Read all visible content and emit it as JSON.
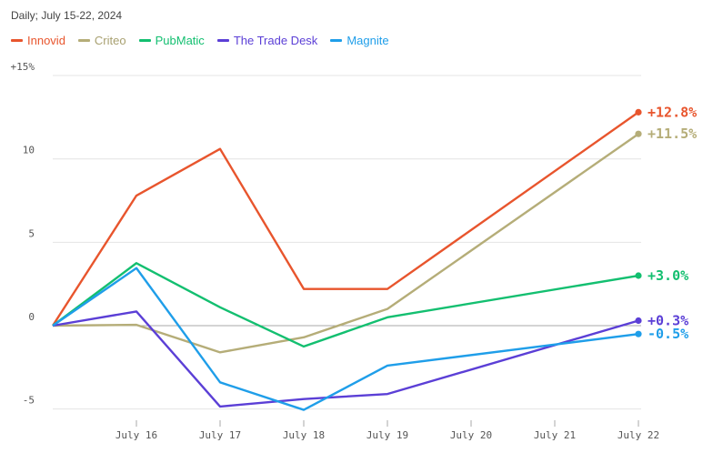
{
  "subtitle": "Daily; July 15-22, 2024",
  "chart_data": {
    "type": "line",
    "x": [
      "July 15",
      "July 16",
      "July 17",
      "July 18",
      "July 19",
      "July 20",
      "July 21",
      "July 22"
    ],
    "x_tick_labels": [
      "",
      "July 16",
      "July 17",
      "July 18",
      "July 19",
      "July 20",
      "July 21",
      "July 22"
    ],
    "y_ticks": [
      -5,
      0,
      5,
      10,
      15
    ],
    "y_tick_labels": [
      "-5",
      "0",
      "5",
      "10",
      "+15%"
    ],
    "ylim": [
      -5,
      15
    ],
    "grid": "horizontal",
    "legend_position": "top-left",
    "series": [
      {
        "name": "Innovid",
        "color": "#e8552d",
        "end_label": "+12.8%",
        "values": [
          0,
          7.8,
          10.6,
          2.2,
          2.2,
          null,
          null,
          12.8
        ]
      },
      {
        "name": "Criteo",
        "color": "#b5ad78",
        "end_label": "+11.5%",
        "values": [
          0,
          0.05,
          -1.6,
          -0.7,
          1.0,
          null,
          null,
          11.5
        ]
      },
      {
        "name": "PubMatic",
        "color": "#13bf70",
        "end_label": "+3.0%",
        "values": [
          0,
          3.75,
          1.1,
          -1.25,
          0.5,
          null,
          null,
          3.0
        ]
      },
      {
        "name": "The Trade Desk",
        "color": "#5b3fd6",
        "end_label": "+0.3%",
        "values": [
          0,
          0.85,
          -4.85,
          -4.4,
          -4.1,
          null,
          null,
          0.3
        ]
      },
      {
        "name": "Magnite",
        "color": "#1f9ee9",
        "end_label": "-0.5%",
        "values": [
          0,
          3.45,
          -3.4,
          -5.05,
          -2.4,
          null,
          null,
          -0.5
        ]
      }
    ]
  }
}
